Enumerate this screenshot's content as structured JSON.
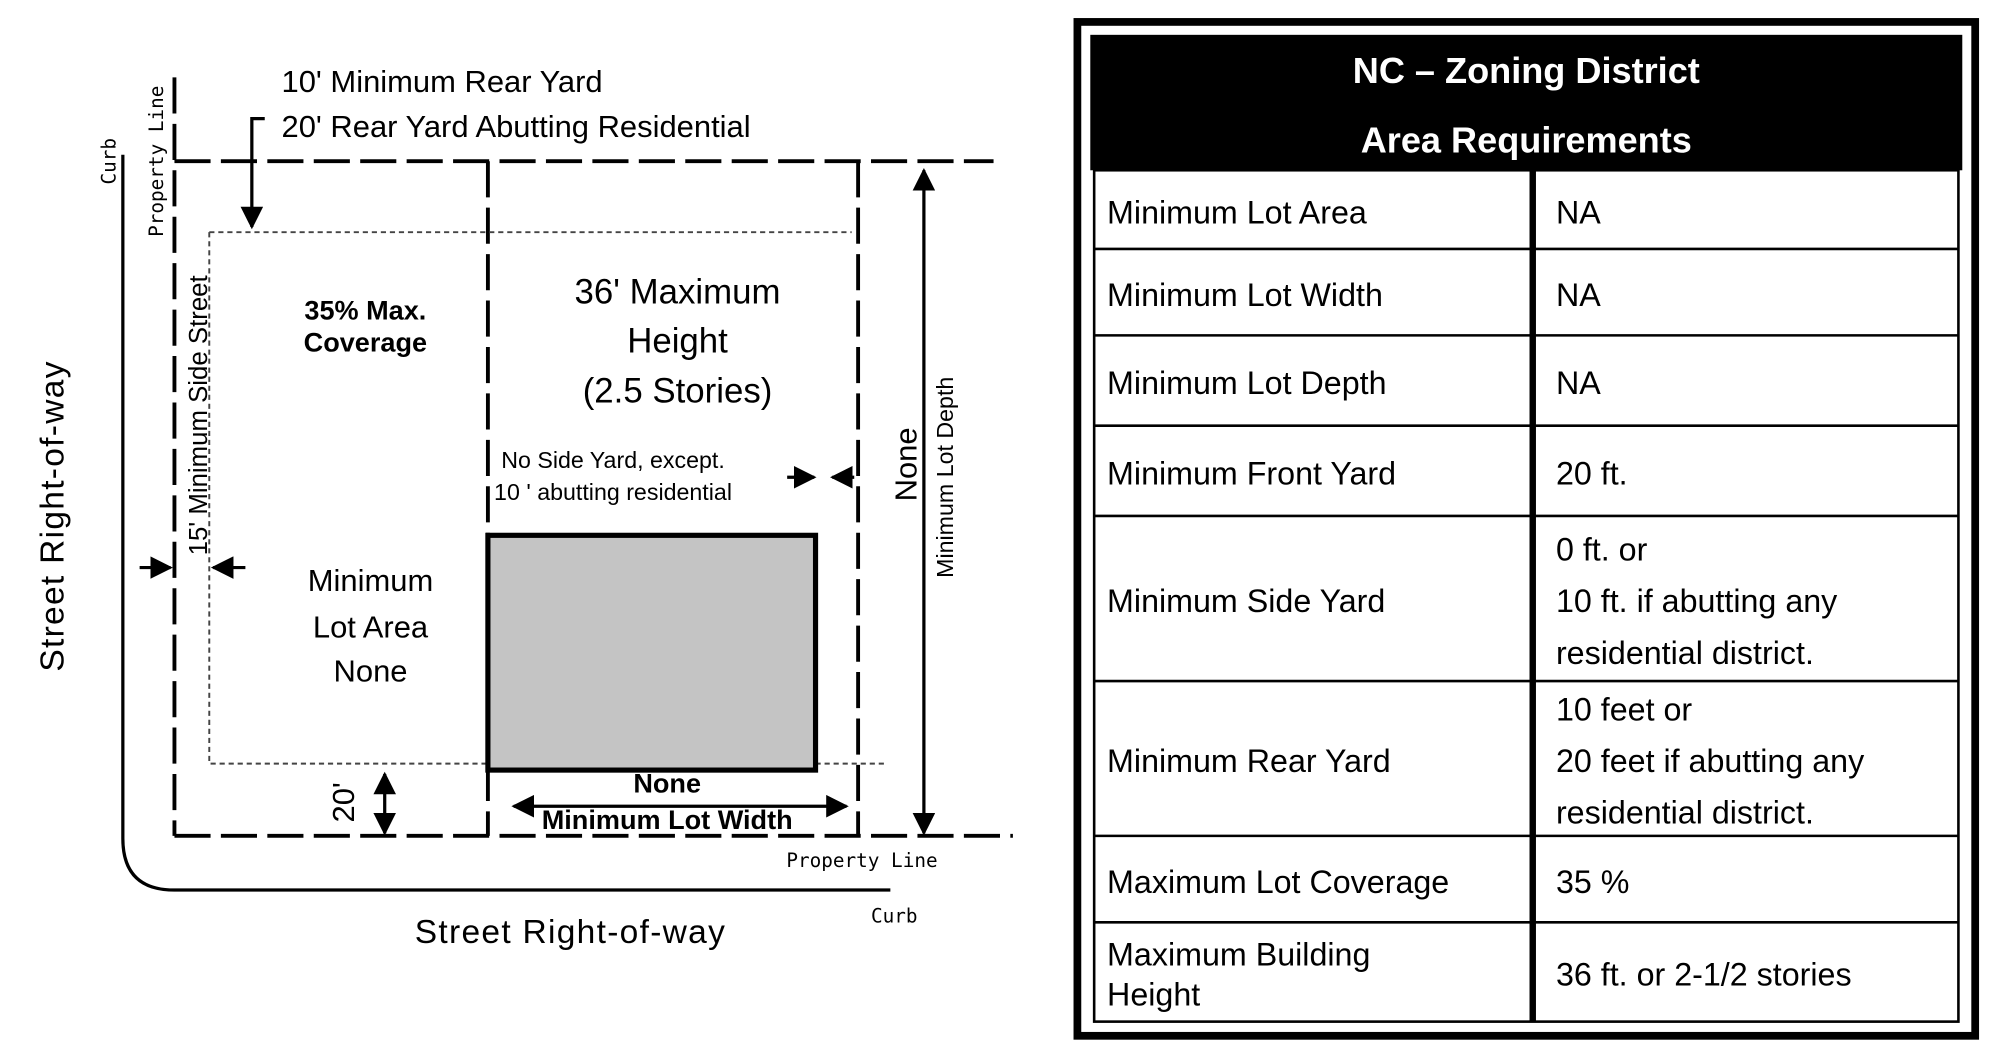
{
  "diagram": {
    "rear_yard": [
      "10' Minimum Rear Yard",
      "20' Rear Yard Abutting Residential"
    ],
    "top_property_line": "Property Line",
    "left_curb": "Curb",
    "coverage": [
      "35% Max.",
      "Coverage"
    ],
    "height": [
      "36' Maximum",
      "Height",
      "(2.5 Stories)"
    ],
    "side_street": "15' Minimum Side Street",
    "side_yard": [
      "No Side Yard, except.",
      "10 ' abutting residential"
    ],
    "lot_depth": [
      "None",
      "Minimum Lot Depth"
    ],
    "lot_area": [
      "Minimum",
      "Lot Area",
      "None"
    ],
    "front_yard": "20'",
    "lot_width": [
      "None",
      "Minimum Lot Width"
    ],
    "bottom_property_line": "Property Line",
    "bottom_curb": "Curb",
    "street_left": "Street Right-of-way",
    "street_bottom": "Street Right-of-way"
  },
  "table": {
    "title": [
      "NC – Zoning District",
      "Area Requirements"
    ],
    "rows": [
      {
        "label": [
          "Minimum Lot Area"
        ],
        "value": [
          "NA"
        ]
      },
      {
        "label": [
          "Minimum Lot Width"
        ],
        "value": [
          "NA"
        ]
      },
      {
        "label": [
          "Minimum Lot Depth"
        ],
        "value": [
          "NA"
        ]
      },
      {
        "label": [
          "Minimum Front Yard"
        ],
        "value": [
          "20 ft."
        ]
      },
      {
        "label": [
          "Minimum Side Yard"
        ],
        "value": [
          "0 ft. or",
          "10 ft. if abutting any",
          "residential district."
        ]
      },
      {
        "label": [
          "Minimum Rear Yard"
        ],
        "value": [
          "10 feet or",
          "20 feet if abutting any",
          "residential district."
        ]
      },
      {
        "label": [
          "Maximum Lot Coverage"
        ],
        "value": [
          "35 %"
        ]
      },
      {
        "label": [
          "Maximum Building",
          "Height"
        ],
        "value": [
          "36 ft. or 2-1/2 stories"
        ]
      }
    ]
  }
}
